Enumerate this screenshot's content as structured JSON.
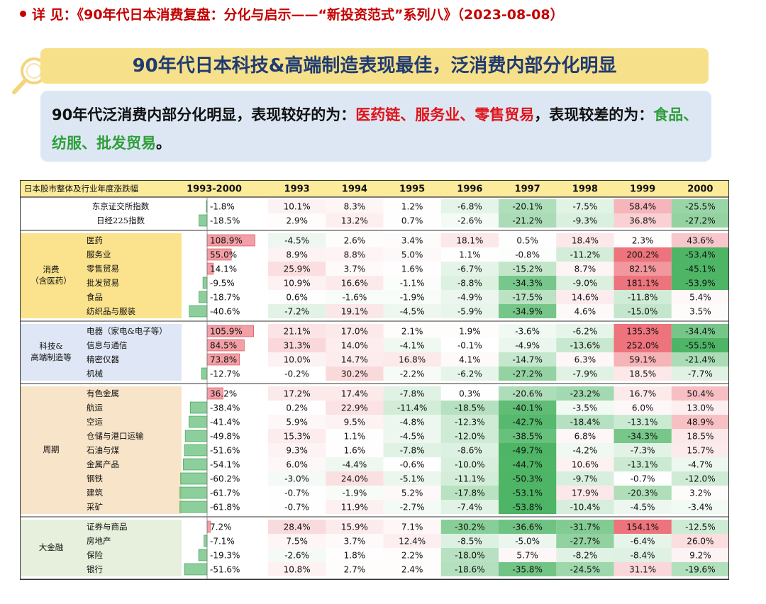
{
  "source_line": "详 见：《90年代日本消费复盘：分化与启示——“新投资范式”系列八》（2023-08-08）",
  "title": "90年代日本科技&高端制造表现最佳，泛消费内部分化明显",
  "note": {
    "prefix": "90年代泛消费内部分化明显，表现较好的为：",
    "good": "医药链、服务业、零售贸易",
    "middle": "，表现较差的为：",
    "bad": "食品、纺服、批发贸易",
    "suffix": "。"
  },
  "colors": {
    "title_bg": "#f7e08a",
    "title_text": "#1f3b73",
    "note_bg": "#dde7f4",
    "good_text": "#e0141a",
    "bad_text": "#2f9e3a",
    "header_bg": "#fbeb9a",
    "consumer_bg": "#fbe28c",
    "tech_bg": "#dfe6f5",
    "cycle_bg": "#f8e4c8",
    "finance_bg": "#e6f0dc",
    "positive": "#e8505b",
    "negative": "#2ea84a"
  },
  "table": {
    "corner_label": "日本股市整体及行业年度涨跌幅",
    "columns": [
      "1993-2000",
      "1993",
      "1994",
      "1995",
      "1996",
      "1997",
      "1998",
      "1999",
      "2000"
    ],
    "groups": [
      {
        "label": "",
        "rows": [
          {
            "name": "东京证交所指数",
            "values": [
              -1.8,
              10.1,
              8.3,
              1.2,
              -6.8,
              -20.1,
              -7.5,
              58.4,
              -25.5
            ]
          },
          {
            "name": "日经225指数",
            "values": [
              -18.5,
              2.9,
              13.2,
              0.7,
              -2.6,
              -21.2,
              -9.3,
              36.8,
              -27.2
            ]
          }
        ]
      },
      {
        "label": "消费\n（含医药）",
        "rows": [
          {
            "name": "医药",
            "values": [
              108.9,
              -4.5,
              2.6,
              3.4,
              18.1,
              0.5,
              18.4,
              2.3,
              43.6
            ]
          },
          {
            "name": "服务业",
            "values": [
              55.0,
              8.9,
              8.8,
              5.0,
              1.1,
              -0.8,
              -11.2,
              200.2,
              -53.4
            ]
          },
          {
            "name": "零售贸易",
            "values": [
              14.1,
              25.9,
              3.7,
              1.6,
              -6.7,
              -15.2,
              8.7,
              82.1,
              -45.1
            ]
          },
          {
            "name": "批发贸易",
            "values": [
              -9.5,
              10.9,
              16.6,
              -1.1,
              -8.8,
              -34.3,
              -9.0,
              181.1,
              -53.9
            ]
          },
          {
            "name": "食品",
            "values": [
              -18.7,
              0.6,
              -1.6,
              -1.9,
              -4.9,
              -17.5,
              14.6,
              -11.8,
              5.4
            ]
          },
          {
            "name": "纺织品与服装",
            "values": [
              -40.6,
              -7.2,
              19.1,
              -4.5,
              -5.9,
              -34.9,
              4.6,
              -15.0,
              3.5
            ]
          }
        ]
      },
      {
        "label": "科技&\n高端制造等",
        "rows": [
          {
            "name": "电器（家电&电子等）",
            "values": [
              105.9,
              21.1,
              17.0,
              2.1,
              1.9,
              -3.6,
              -6.2,
              135.3,
              -34.4
            ]
          },
          {
            "name": "信息与通信",
            "values": [
              84.5,
              31.3,
              14.0,
              -4.1,
              -0.1,
              -4.9,
              -13.6,
              252.0,
              -55.5
            ]
          },
          {
            "name": "精密仪器",
            "values": [
              73.8,
              10.0,
              14.7,
              16.8,
              4.1,
              -14.7,
              6.3,
              59.1,
              -21.4
            ]
          },
          {
            "name": "机械",
            "values": [
              -12.7,
              -0.2,
              30.2,
              -2.2,
              -6.2,
              -27.2,
              -7.9,
              18.5,
              -7.7
            ]
          }
        ]
      },
      {
        "label": "周期",
        "rows": [
          {
            "name": "有色金属",
            "values": [
              36.2,
              17.2,
              17.4,
              -7.8,
              0.3,
              -20.6,
              -23.2,
              16.7,
              50.4
            ]
          },
          {
            "name": "航运",
            "values": [
              -38.4,
              0.2,
              22.9,
              -11.4,
              -18.5,
              -40.1,
              -3.5,
              6.0,
              13.0
            ]
          },
          {
            "name": "空运",
            "values": [
              -41.4,
              5.9,
              9.5,
              -4.8,
              -12.3,
              -42.7,
              -18.4,
              -13.1,
              48.9
            ]
          },
          {
            "name": "仓储与港口运输",
            "values": [
              -49.8,
              15.3,
              1.1,
              -4.5,
              -12.0,
              -38.5,
              6.8,
              -34.3,
              18.5
            ]
          },
          {
            "name": "石油与煤",
            "values": [
              -51.6,
              9.3,
              1.6,
              -7.8,
              -8.6,
              -49.7,
              -4.2,
              -7.3,
              15.7
            ]
          },
          {
            "name": "金属产品",
            "values": [
              -54.1,
              6.0,
              -4.4,
              -0.6,
              -10.0,
              -44.7,
              10.6,
              -13.1,
              -4.7
            ]
          },
          {
            "name": "钢铁",
            "values": [
              -60.2,
              -3.0,
              24.0,
              -5.1,
              -11.1,
              -50.3,
              -9.7,
              -0.7,
              -12.0
            ]
          },
          {
            "name": "建筑",
            "values": [
              -61.7,
              -0.7,
              -1.9,
              5.2,
              -17.8,
              -53.1,
              17.9,
              -20.3,
              3.2
            ]
          },
          {
            "name": "采矿",
            "values": [
              -61.8,
              -0.7,
              11.9,
              -2.7,
              -7.4,
              -53.8,
              -10.4,
              -4.5,
              -3.4
            ]
          }
        ]
      },
      {
        "label": "大金融",
        "rows": [
          {
            "name": "证券与商品",
            "values": [
              7.2,
              28.4,
              15.9,
              7.1,
              -30.2,
              -36.6,
              -31.7,
              154.1,
              -12.5
            ]
          },
          {
            "name": "房地产",
            "values": [
              -7.1,
              7.5,
              3.7,
              12.4,
              -8.5,
              -5.0,
              -27.7,
              -6.4,
              26.0
            ]
          },
          {
            "name": "保险",
            "values": [
              -19.3,
              -2.6,
              1.8,
              2.2,
              -18.0,
              5.7,
              -8.2,
              -8.4,
              9.2
            ]
          },
          {
            "name": "银行",
            "values": [
              -51.6,
              10.8,
              2.7,
              2.4,
              -18.6,
              -35.8,
              -24.5,
              31.1,
              -19.6
            ]
          }
        ]
      }
    ]
  }
}
